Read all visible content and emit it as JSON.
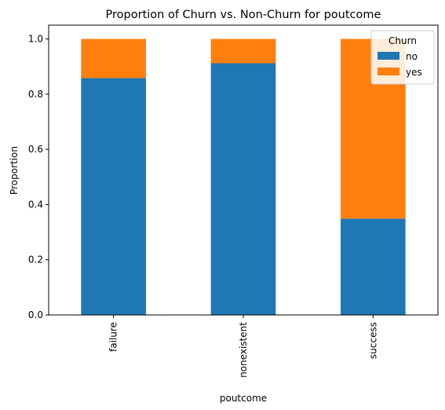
{
  "chart_data": {
    "type": "bar",
    "stacked": true,
    "title": "Proportion of Churn vs. Non-Churn for poutcome",
    "xlabel": "poutcome",
    "ylabel": "Proportion",
    "categories": [
      "failure",
      "nonexistent",
      "success"
    ],
    "series": [
      {
        "name": "no",
        "values": [
          0.858,
          0.912,
          0.349
        ],
        "color": "#1f77b4"
      },
      {
        "name": "yes",
        "values": [
          0.142,
          0.088,
          0.651
        ],
        "color": "#ff7f0e"
      }
    ],
    "ylim": [
      0,
      1.05
    ],
    "yticks": [
      "0.0",
      "0.2",
      "0.4",
      "0.6",
      "0.8",
      "1.0"
    ],
    "grid": false,
    "legend": {
      "title": "Churn",
      "position": "top-right"
    }
  }
}
